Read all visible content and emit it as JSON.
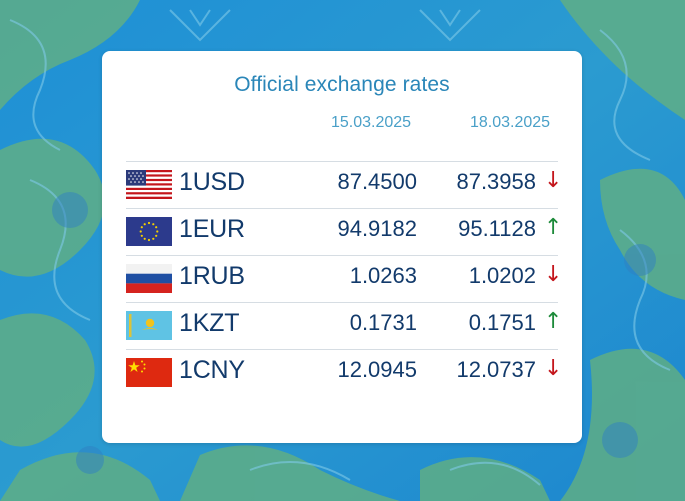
{
  "title": "Official exchange rates",
  "dates": [
    "15.03.2025",
    "18.03.2025"
  ],
  "colors": {
    "up": "#1d8a3a",
    "down": "#c4161c",
    "accent": "#2a86b8",
    "text": "#123a6b"
  },
  "rates": [
    {
      "code": "1USD",
      "flag": "us-flag-icon",
      "v1": "87.4500",
      "v2": "87.3958",
      "arrow": "↓",
      "trend": "down"
    },
    {
      "code": "1EUR",
      "flag": "eu-flag-icon",
      "v1": "94.9182",
      "v2": "95.1128",
      "arrow": "↑",
      "trend": "up"
    },
    {
      "code": "1RUB",
      "flag": "ru-flag-icon",
      "v1": "1.0263",
      "v2": "1.0202",
      "arrow": "↓",
      "trend": "down"
    },
    {
      "code": "1KZT",
      "flag": "kz-flag-icon",
      "v1": "0.1731",
      "v2": "0.1751",
      "arrow": "↑",
      "trend": "up"
    },
    {
      "code": "1CNY",
      "flag": "cn-flag-icon",
      "v1": "12.0945",
      "v2": "12.0737",
      "arrow": "↓",
      "trend": "down"
    }
  ]
}
